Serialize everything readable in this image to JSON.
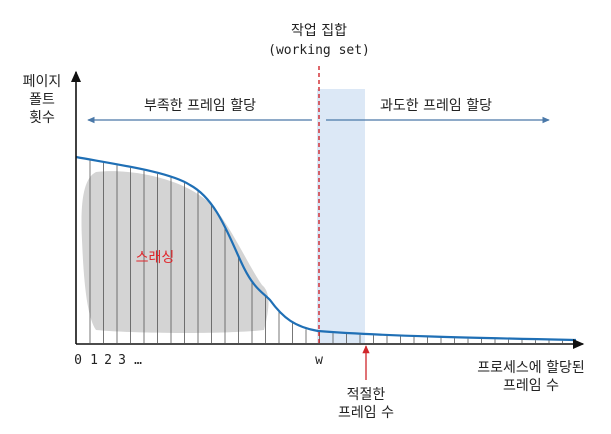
{
  "title": {
    "line1": "작업 집합",
    "line2": "(working set)"
  },
  "y_axis_label": [
    "페이지",
    "폴트",
    "횟수"
  ],
  "x_axis_label": [
    "프로세스에 할당된",
    "프레임 수"
  ],
  "x_ticks": {
    "numbers": [
      "0",
      "1",
      "2",
      "3",
      "…"
    ],
    "w": "w"
  },
  "left_region_label": "부족한 프레임 할당",
  "right_region_label": "과도한 프레임 할당",
  "thrashing_label": "스래싱",
  "optimal_label": [
    "적절한",
    "프레임 수"
  ],
  "colors": {
    "curve": "#1f6fb5",
    "thrashing_area": "#d4d4d4",
    "working_set_band": "#dce8f6",
    "working_set_line": "#d0262b",
    "arrows": "#4a78a8",
    "optimal_arrow": "#d0262b",
    "thrashing_text": "#e0262b"
  }
}
